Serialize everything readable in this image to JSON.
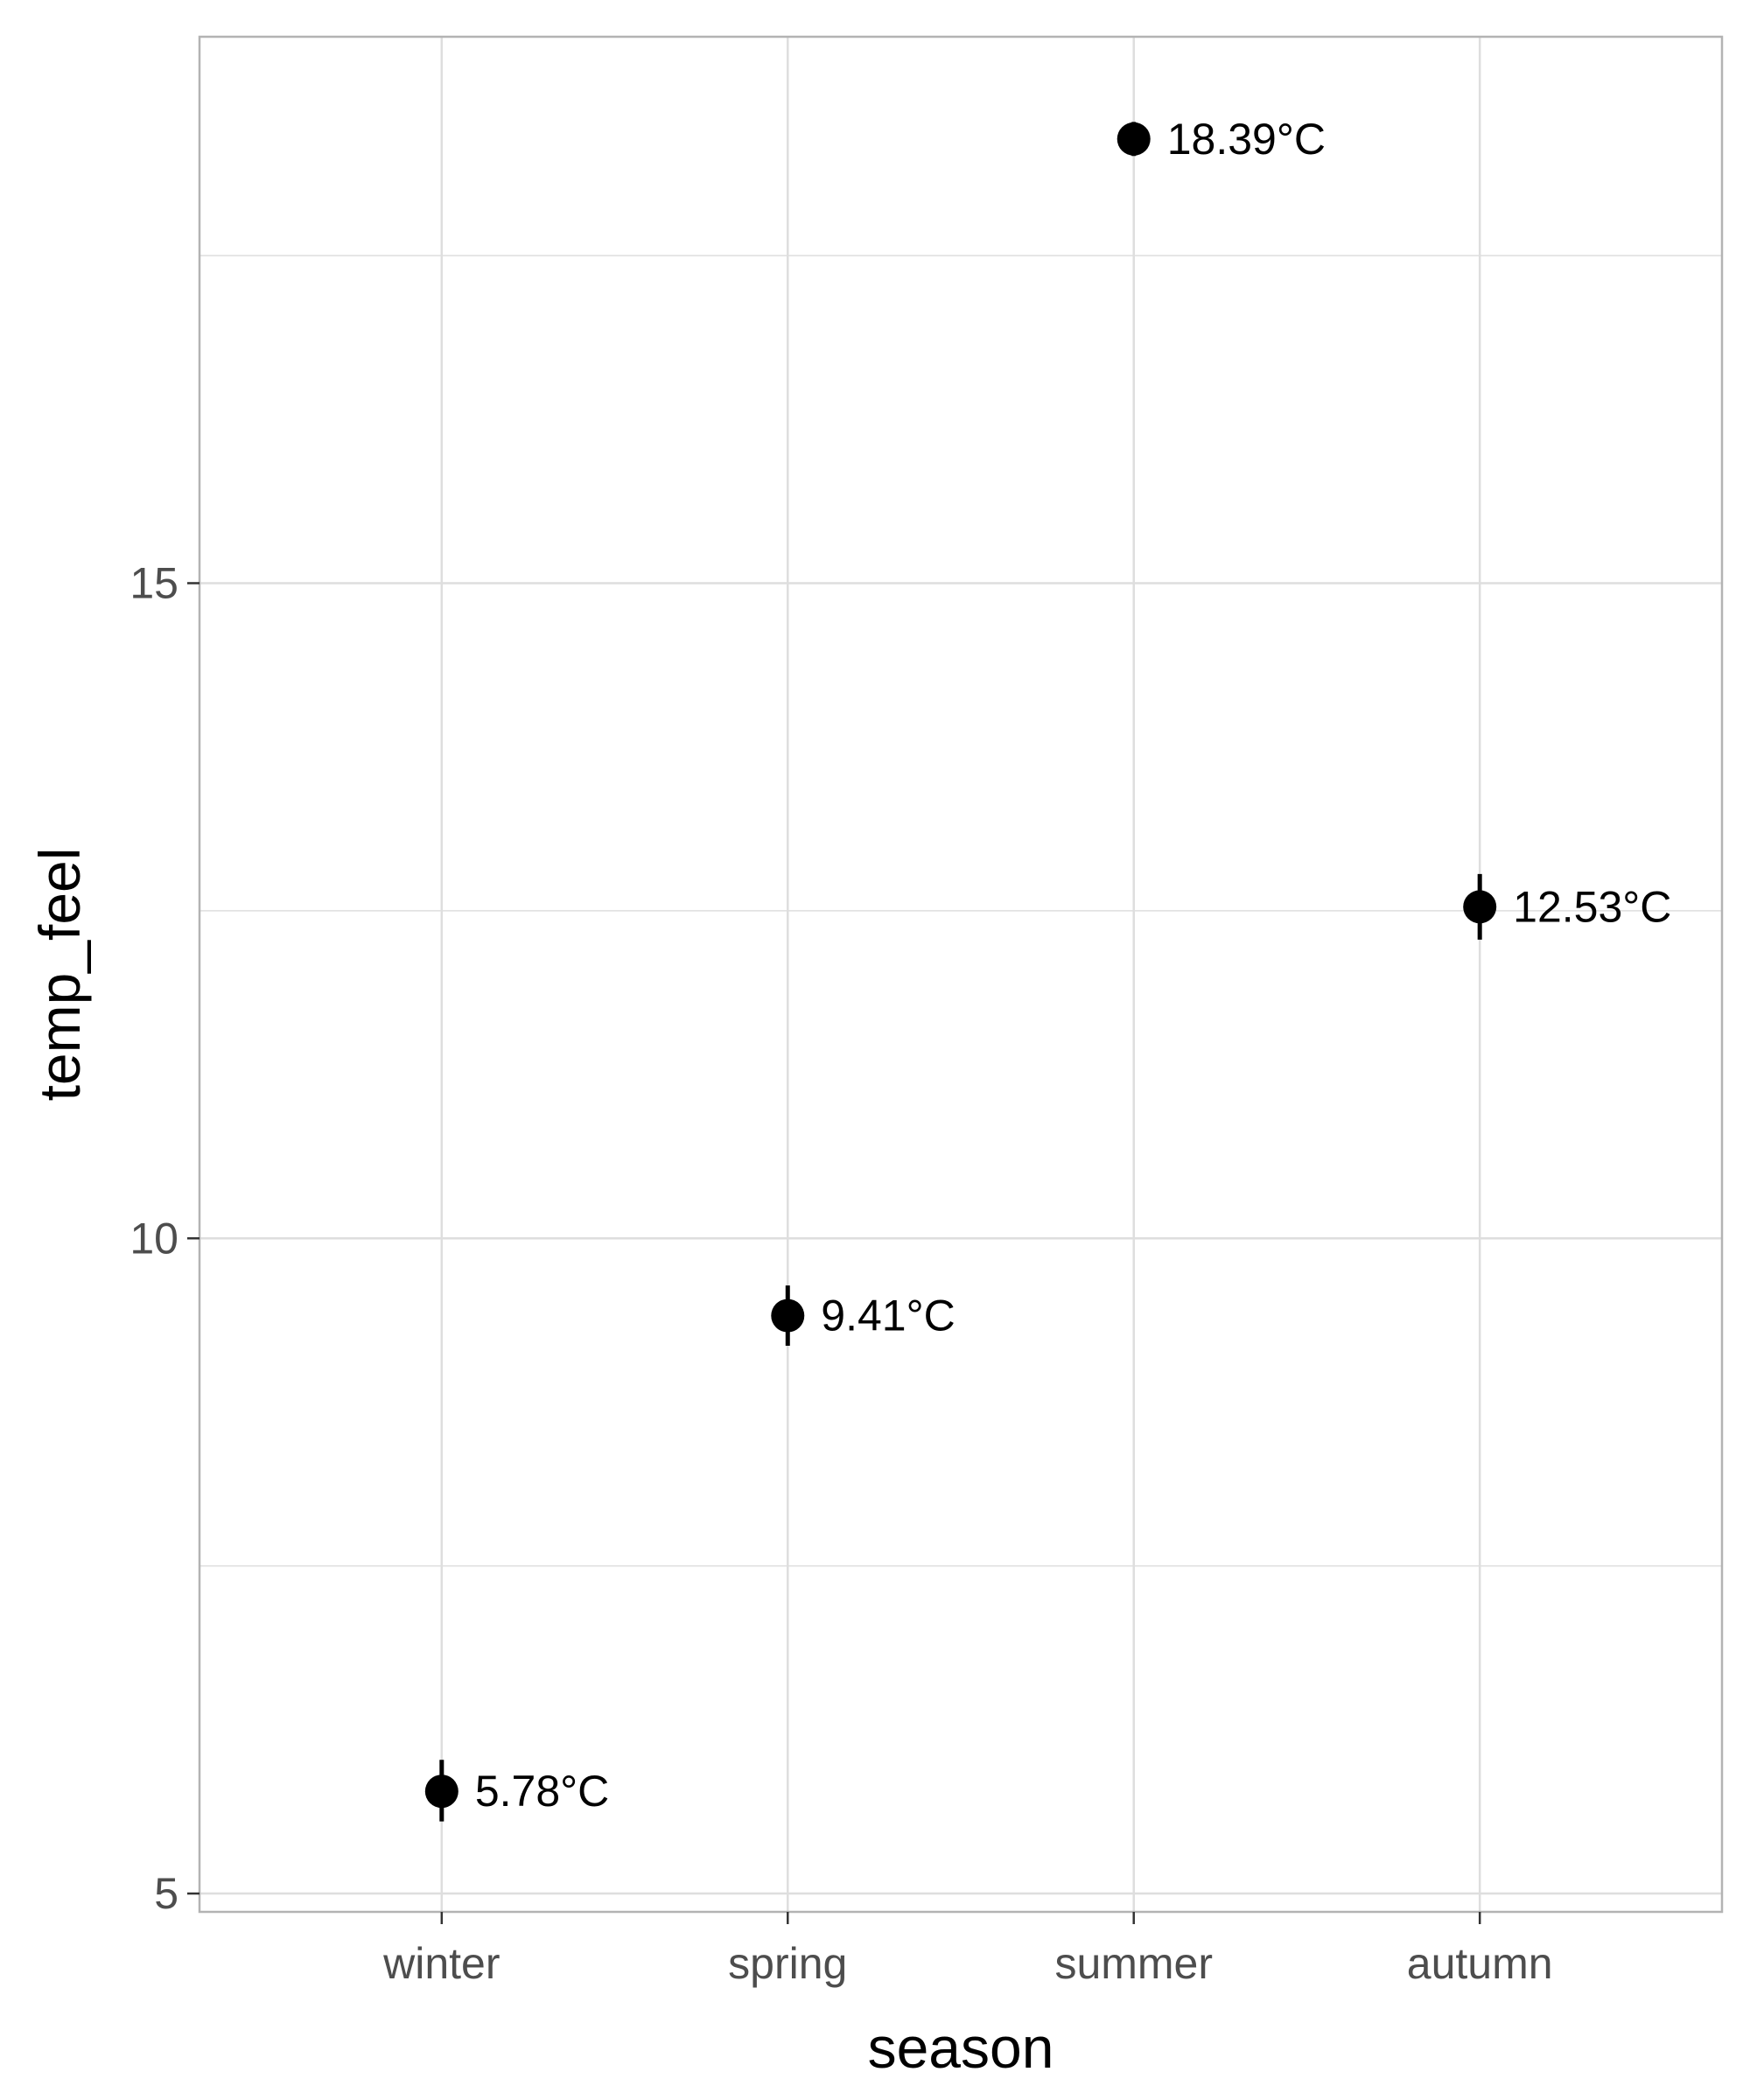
{
  "chart_data": {
    "type": "scatter",
    "title": "",
    "xlabel": "season",
    "ylabel": "temp_feel",
    "categories": [
      "winter",
      "spring",
      "summer",
      "autumn"
    ],
    "series": [
      {
        "values": [
          5.78,
          9.41,
          18.39,
          12.53
        ],
        "ci_low": [
          5.55,
          9.18,
          18.26,
          12.28
        ],
        "ci_high": [
          6.02,
          9.64,
          18.52,
          12.78
        ],
        "labels": [
          "5.78°C",
          "9.41°C",
          "18.39°C",
          "12.53°C"
        ]
      }
    ],
    "ylim": [
      4.86,
      19.17
    ],
    "y_ticks": [
      5,
      10,
      15
    ],
    "y_minor_ticks": [
      7.5,
      12.5,
      17.5
    ],
    "y_tick_labels": [
      "5",
      "10",
      "15"
    ],
    "grid": true,
    "legend": "none",
    "colors": {
      "points": "#000000",
      "grid": "#dedede",
      "panel_border": "#b3b3b3",
      "tick_label": "#4d4d4d"
    }
  }
}
